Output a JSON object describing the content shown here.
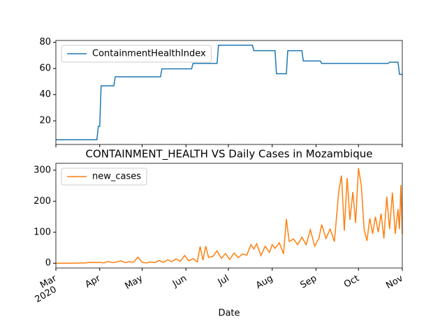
{
  "chart_data": [
    {
      "type": "line",
      "ylim": [
        1.95,
        81.4
      ],
      "yticks": [
        20,
        40,
        60,
        80
      ],
      "xlim": [
        "2020-03-01",
        "2020-11-01"
      ],
      "legend": "upper left",
      "x": [
        "2020-03-01",
        "2020-03-30",
        "2020-03-31",
        "2020-04-01",
        "2020-04-02",
        "2020-04-11",
        "2020-04-12",
        "2020-05-14",
        "2020-05-15",
        "2020-06-05",
        "2020-06-06",
        "2020-06-23",
        "2020-06-24",
        "2020-07-18",
        "2020-07-19",
        "2020-08-03",
        "2020-08-04",
        "2020-08-11",
        "2020-08-12",
        "2020-08-22",
        "2020-08-23",
        "2020-09-04",
        "2020-09-05",
        "2020-10-22",
        "2020-10-23",
        "2020-10-29",
        "2020-10-30",
        "2020-11-01"
      ],
      "series": [
        {
          "name": "ContainmentHealthIndex",
          "color": "#1f77b4",
          "values": [
            5.56,
            5.56,
            15.74,
            15.74,
            46.76,
            46.76,
            53.7,
            53.7,
            59.72,
            59.72,
            63.89,
            63.89,
            77.78,
            77.78,
            73.61,
            73.61,
            56.02,
            56.02,
            73.61,
            73.61,
            65.74,
            65.74,
            63.89,
            63.89,
            64.81,
            64.81,
            55.56,
            55.56
          ]
        }
      ]
    },
    {
      "type": "line",
      "title": "CONTAINMENT_HEALTH VS Daily Cases in Mozambique",
      "x_label": "Date",
      "ylim": [
        -15.35,
        322.35
      ],
      "yticks": [
        0,
        100,
        200,
        300
      ],
      "xlim": [
        "2020-03-01",
        "2020-11-01"
      ],
      "legend": "upper left",
      "xticks": [
        {
          "value": "2020-03-01",
          "label": "Mar"
        },
        {
          "value": "2020-04-01",
          "label": "Apr"
        },
        {
          "value": "2020-05-01",
          "label": "May"
        },
        {
          "value": "2020-06-01",
          "label": "Jun"
        },
        {
          "value": "2020-07-01",
          "label": "Jul"
        },
        {
          "value": "2020-08-01",
          "label": "Aug"
        },
        {
          "value": "2020-09-01",
          "label": "Sep"
        },
        {
          "value": "2020-10-01",
          "label": "Oct"
        },
        {
          "value": "2020-11-01",
          "label": "Nov"
        }
      ],
      "xtick_sublabel": "2020",
      "x": [
        "2020-03-01",
        "2020-03-10",
        "2020-03-22",
        "2020-03-25",
        "2020-03-28",
        "2020-04-01",
        "2020-04-04",
        "2020-04-07",
        "2020-04-10",
        "2020-04-13",
        "2020-04-16",
        "2020-04-19",
        "2020-04-22",
        "2020-04-25",
        "2020-04-28",
        "2020-05-01",
        "2020-05-04",
        "2020-05-07",
        "2020-05-10",
        "2020-05-13",
        "2020-05-16",
        "2020-05-19",
        "2020-05-22",
        "2020-05-25",
        "2020-05-28",
        "2020-05-31",
        "2020-06-03",
        "2020-06-06",
        "2020-06-09",
        "2020-06-11",
        "2020-06-13",
        "2020-06-15",
        "2020-06-17",
        "2020-06-20",
        "2020-06-23",
        "2020-06-26",
        "2020-06-29",
        "2020-07-02",
        "2020-07-05",
        "2020-07-08",
        "2020-07-11",
        "2020-07-14",
        "2020-07-17",
        "2020-07-19",
        "2020-07-21",
        "2020-07-24",
        "2020-07-27",
        "2020-07-30",
        "2020-08-01",
        "2020-08-03",
        "2020-08-06",
        "2020-08-09",
        "2020-08-11",
        "2020-08-13",
        "2020-08-16",
        "2020-08-19",
        "2020-08-22",
        "2020-08-25",
        "2020-08-28",
        "2020-08-31",
        "2020-09-03",
        "2020-09-05",
        "2020-09-08",
        "2020-09-11",
        "2020-09-14",
        "2020-09-17",
        "2020-09-19",
        "2020-09-21",
        "2020-09-23",
        "2020-09-25",
        "2020-09-27",
        "2020-09-29",
        "2020-10-01",
        "2020-10-03",
        "2020-10-05",
        "2020-10-07",
        "2020-10-09",
        "2020-10-11",
        "2020-10-13",
        "2020-10-15",
        "2020-10-17",
        "2020-10-19",
        "2020-10-21",
        "2020-10-23",
        "2020-10-25",
        "2020-10-27",
        "2020-10-29",
        "2020-10-30",
        "2020-10-31",
        "2020-11-01"
      ],
      "series": [
        {
          "name": "new_cases",
          "color": "#ff7f0e",
          "values": [
            0,
            0,
            1,
            3,
            2,
            3,
            1,
            6,
            2,
            4,
            8,
            2,
            5,
            3,
            20,
            3,
            1,
            4,
            2,
            9,
            3,
            11,
            5,
            14,
            6,
            25,
            8,
            15,
            4,
            54,
            10,
            55,
            19,
            22,
            40,
            16,
            31,
            12,
            33,
            18,
            30,
            26,
            60,
            46,
            63,
            25,
            55,
            35,
            60,
            48,
            66,
            30,
            143,
            70,
            78,
            60,
            84,
            60,
            108,
            55,
            80,
            125,
            80,
            110,
            70,
            230,
            283,
            105,
            275,
            140,
            230,
            130,
            307,
            250,
            110,
            72,
            145,
            95,
            150,
            100,
            160,
            80,
            215,
            110,
            228,
            95,
            175,
            110,
            252,
            95
          ]
        }
      ]
    }
  ]
}
